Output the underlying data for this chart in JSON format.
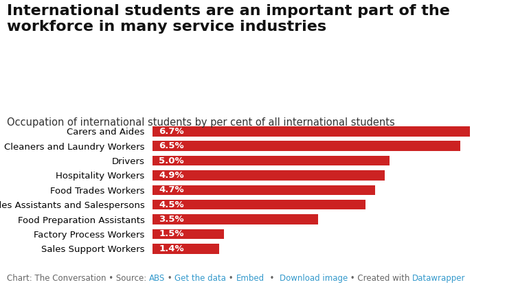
{
  "title_line1": "International students are an important part of the",
  "title_line2": "workforce in many service industries",
  "subtitle": "Occupation of international students by per cent of all international students",
  "categories": [
    "Carers and Aides",
    "Cleaners and Laundry Workers",
    "Drivers",
    "Hospitality Workers",
    "Food Trades Workers",
    "Sales Assistants and Salespersons",
    "Food Preparation Assistants",
    "Factory Process Workers",
    "Sales Support Workers"
  ],
  "values": [
    6.7,
    6.5,
    5.0,
    4.9,
    4.7,
    4.5,
    3.5,
    1.5,
    1.4
  ],
  "labels": [
    "6.7%",
    "6.5%",
    "5.0%",
    "4.9%",
    "4.7%",
    "4.5%",
    "3.5%",
    "1.5%",
    "1.4%"
  ],
  "bar_color": "#cc2222",
  "label_color": "#ffffff",
  "background_color": "#ffffff",
  "title_fontsize": 16,
  "subtitle_fontsize": 10.5,
  "bar_label_fontsize": 9.5,
  "category_fontsize": 9.5,
  "footer_fontsize": 8.5,
  "footer_gray": "#666666",
  "footer_link_color": "#3399cc",
  "xlim": [
    0,
    7.5
  ]
}
